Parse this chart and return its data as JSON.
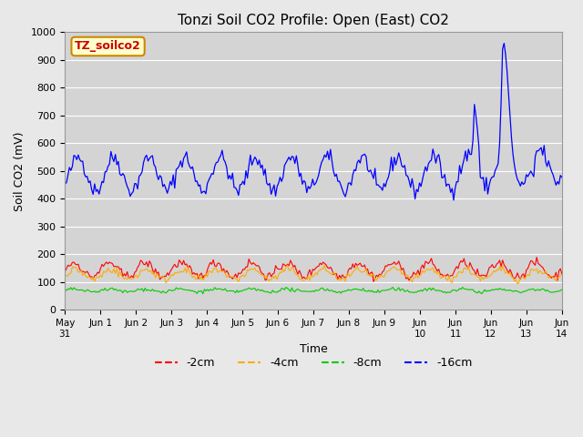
{
  "title": "Tonzi Soil CO2 Profile: Open (East) CO2",
  "ylabel": "Soil CO2 (mV)",
  "xlabel": "Time",
  "legend_label": "TZ_soilco2",
  "line_labels": [
    "-2cm",
    "-4cm",
    "-8cm",
    "-16cm"
  ],
  "line_colors": [
    "#ff0000",
    "#ffaa00",
    "#00cc00",
    "#0000ff"
  ],
  "ylim": [
    0,
    1000
  ],
  "bg_color": "#e8e8e8",
  "plot_bg_color": "#d4d4d4",
  "n_points": 336,
  "days": 14,
  "seed": 42,
  "x_tick_positions": [
    0,
    1,
    2,
    3,
    4,
    5,
    6,
    7,
    8,
    9,
    10,
    11,
    12,
    13,
    14
  ],
  "x_tick_labels": [
    "May\n31",
    "Jun 1",
    "Jun 2",
    "Jun 3",
    "Jun 4",
    "Jun 5",
    "Jun 6",
    "Jun 7",
    "Jun 8",
    "Jun 9",
    "Jun\n10",
    "Jun\n11",
    "Jun\n12",
    "Jun\n13",
    "Jun\n14"
  ],
  "y_ticks": [
    0,
    100,
    200,
    300,
    400,
    500,
    600,
    700,
    800,
    900,
    1000
  ]
}
